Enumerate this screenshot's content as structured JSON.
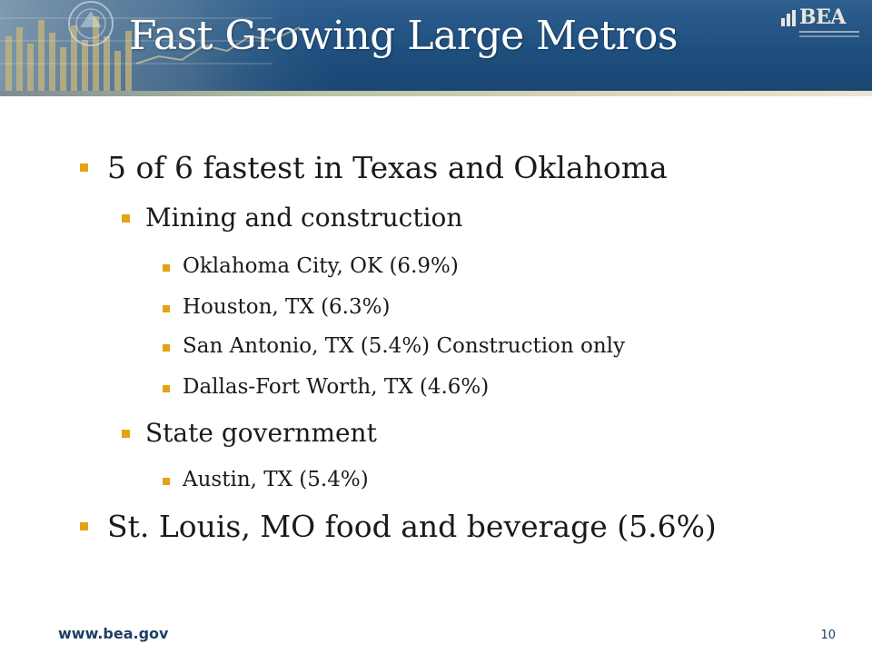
{
  "slide": {
    "title": "Fast Growing Large Metros",
    "logo_text": "BEA",
    "bullets": [
      {
        "level": 1,
        "text": "5 of 6 fastest in Texas and Oklahoma"
      },
      {
        "level": 2,
        "text": "Mining and construction"
      },
      {
        "level": 3,
        "text": "Oklahoma City, OK (6.9%)"
      },
      {
        "level": 3,
        "text": "Houston, TX (6.3%)"
      },
      {
        "level": 3,
        "text": "San Antonio, TX (5.4%) Construction only"
      },
      {
        "level": 3,
        "text": "Dallas-Fort Worth, TX (4.6%)"
      },
      {
        "level": 2,
        "text": "State government"
      },
      {
        "level": 3,
        "text": "Austin, TX (5.4%)"
      },
      {
        "level": 1,
        "text": "St. Louis, MO food and beverage (5.6%)"
      }
    ],
    "footer_url": "www.bea.gov",
    "page_number": "10"
  },
  "colors": {
    "header_blue": "#1e4f7e",
    "bullet_marker": "#e6a116",
    "footer_text": "#1e3f66"
  }
}
